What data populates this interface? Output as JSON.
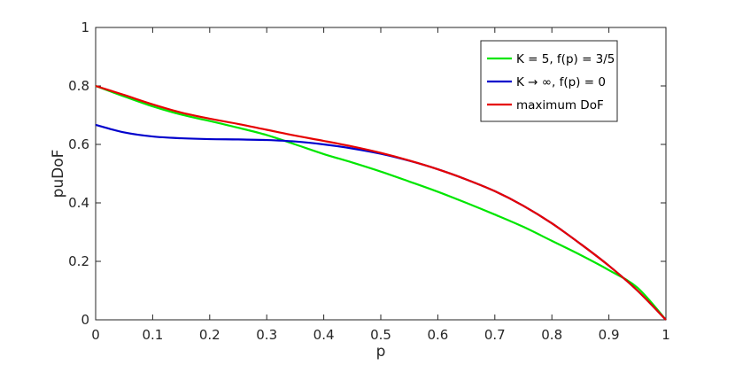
{
  "chart_data": {
    "type": "line",
    "title": "",
    "xlabel": "p",
    "ylabel": "puDoF",
    "xlim": [
      0,
      1
    ],
    "ylim": [
      0,
      1
    ],
    "xticks": [
      "0",
      "0.1",
      "0.2",
      "0.3",
      "0.4",
      "0.5",
      "0.6",
      "0.7",
      "0.8",
      "0.9",
      "1"
    ],
    "yticks": [
      "0",
      "0.2",
      "0.4",
      "0.6",
      "0.8",
      "1"
    ],
    "grid": false,
    "legend_position": "top-right",
    "series": [
      {
        "name": "K = 5, f(p) = 3/5",
        "color": "#00e600",
        "x": [
          0,
          0.05,
          0.1,
          0.15,
          0.2,
          0.25,
          0.3,
          0.35,
          0.4,
          0.45,
          0.5,
          0.55,
          0.6,
          0.65,
          0.7,
          0.75,
          0.8,
          0.85,
          0.9,
          0.95,
          1
        ],
        "y": [
          0.8,
          0.764,
          0.73,
          0.702,
          0.68,
          0.657,
          0.632,
          0.6,
          0.567,
          0.538,
          0.507,
          0.473,
          0.438,
          0.4,
          0.36,
          0.318,
          0.27,
          0.222,
          0.17,
          0.11,
          0.0
        ]
      },
      {
        "name": "K → ∞, f(p) = 0",
        "color": "#0000cc",
        "x": [
          0,
          0.05,
          0.1,
          0.15,
          0.2,
          0.25,
          0.3,
          0.35,
          0.4,
          0.45,
          0.5,
          0.55,
          0.6,
          0.65,
          0.7,
          0.75,
          0.8,
          0.85,
          0.9,
          0.95,
          1
        ],
        "y": [
          0.667,
          0.641,
          0.627,
          0.621,
          0.618,
          0.617,
          0.615,
          0.61,
          0.6,
          0.586,
          0.568,
          0.544,
          0.515,
          0.48,
          0.44,
          0.39,
          0.33,
          0.26,
          0.185,
          0.1,
          0.0
        ]
      },
      {
        "name": "maximum DoF",
        "color": "#e60000",
        "x": [
          0,
          0.05,
          0.1,
          0.15,
          0.2,
          0.25,
          0.3,
          0.35,
          0.4,
          0.45,
          0.5,
          0.55,
          0.6,
          0.65,
          0.7,
          0.75,
          0.8,
          0.85,
          0.9,
          0.95,
          1
        ],
        "y": [
          0.8,
          0.769,
          0.737,
          0.709,
          0.688,
          0.67,
          0.65,
          0.63,
          0.612,
          0.593,
          0.571,
          0.545,
          0.515,
          0.48,
          0.44,
          0.39,
          0.33,
          0.26,
          0.185,
          0.1,
          0.0
        ]
      }
    ]
  }
}
